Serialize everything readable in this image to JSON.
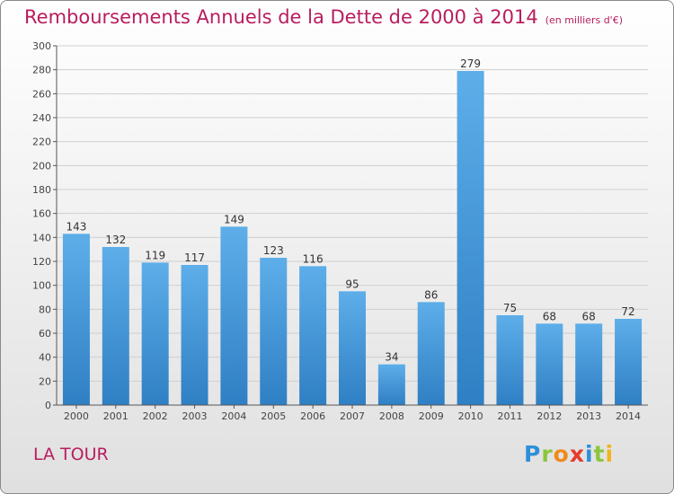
{
  "header": {
    "title": "Remboursements Annuels de la Dette de 2000 à 2014",
    "subtitle": "(en milliers d'€)"
  },
  "commune": "LA TOUR",
  "logo": {
    "text": "Proxiti",
    "letters": [
      "P",
      "r",
      "o",
      "x",
      "i",
      "t",
      "i"
    ],
    "letter_colors": [
      "#2e8fd8",
      "#8cc63e",
      "#f08a1c",
      "#e63b2e",
      "#2e8fd8",
      "#8cc63e",
      "#f0b41c"
    ]
  },
  "colors": {
    "title": "#b81d5e",
    "bar_top": "#5daee9",
    "bar_bottom": "#2f7fc4",
    "grid": "#cfcfcf"
  },
  "chart_data": {
    "type": "bar",
    "categories": [
      "2000",
      "2001",
      "2002",
      "2003",
      "2004",
      "2005",
      "2006",
      "2007",
      "2008",
      "2009",
      "2010",
      "2011",
      "2012",
      "2013",
      "2014"
    ],
    "values": [
      143,
      132,
      119,
      117,
      149,
      123,
      116,
      95,
      34,
      86,
      279,
      75,
      68,
      68,
      72
    ],
    "ylim": [
      0,
      300
    ],
    "yticks": [
      0,
      20,
      40,
      60,
      80,
      100,
      120,
      140,
      160,
      180,
      200,
      220,
      240,
      260,
      280,
      300
    ],
    "grid": true,
    "data_labels": true
  }
}
